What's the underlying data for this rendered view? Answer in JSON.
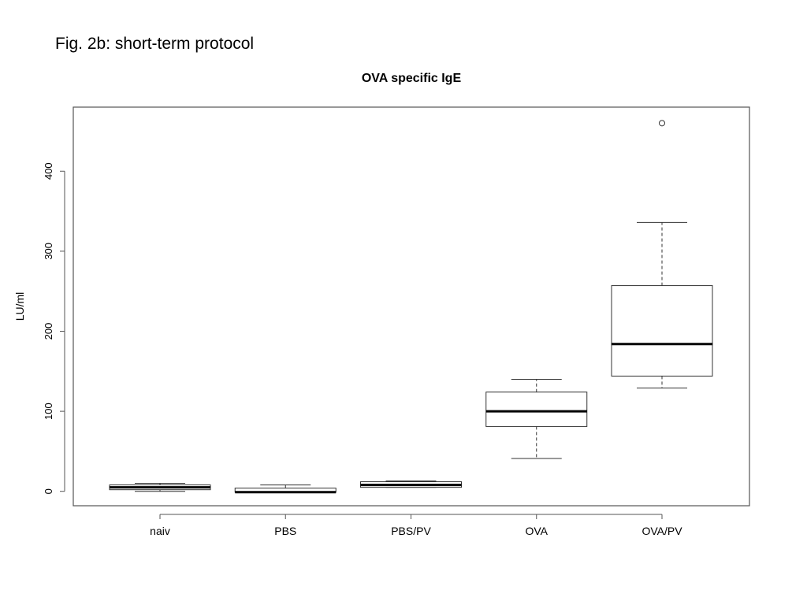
{
  "slide": {
    "caption": "Fig. 2b: short-term protocol"
  },
  "chart_data": {
    "type": "boxplot",
    "title": "OVA specific IgE",
    "xlabel": "",
    "ylabel": "LU/ml",
    "ylim": [
      -18,
      480
    ],
    "yticks": [
      0,
      100,
      200,
      300,
      400
    ],
    "grid": false,
    "categories": [
      "naiv",
      "PBS",
      "PBS/PV",
      "OVA",
      "OVA/PV"
    ],
    "boxes": [
      {
        "category": "naiv",
        "whisker_low": 0,
        "q1": 2,
        "median": 5,
        "q3": 8,
        "whisker_high": 10,
        "outliers": []
      },
      {
        "category": "PBS",
        "whisker_low": -1,
        "q1": -1,
        "median": -1,
        "q3": 4,
        "whisker_high": 8,
        "outliers": []
      },
      {
        "category": "PBS/PV",
        "whisker_low": 5,
        "q1": 5,
        "median": 8,
        "q3": 12,
        "whisker_high": 13,
        "outliers": []
      },
      {
        "category": "OVA",
        "whisker_low": 41,
        "q1": 81,
        "median": 100,
        "q3": 124,
        "whisker_high": 140,
        "outliers": []
      },
      {
        "category": "OVA/PV",
        "whisker_low": 129,
        "q1": 144,
        "median": 184,
        "q3": 257,
        "whisker_high": 336,
        "outliers": [
          460
        ]
      }
    ]
  }
}
